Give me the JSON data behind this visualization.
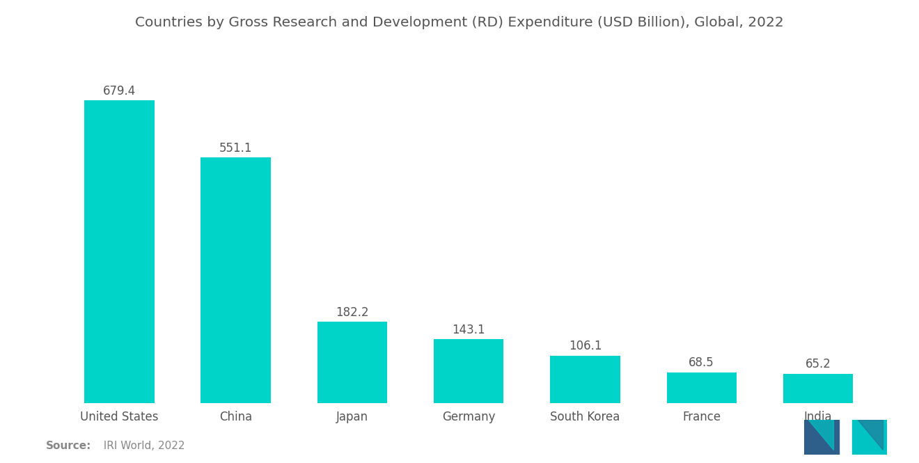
{
  "title": "Countries by Gross Research and Development (RD) Expenditure (USD Billion), Global, 2022",
  "categories": [
    "United States",
    "China",
    "Japan",
    "Germany",
    "South Korea",
    "France",
    "India"
  ],
  "values": [
    679.4,
    551.1,
    182.2,
    143.1,
    106.1,
    68.5,
    65.2
  ],
  "bar_color": "#00D4C8",
  "background_color": "#ffffff",
  "title_fontsize": 14.5,
  "label_fontsize": 12,
  "value_fontsize": 12,
  "source_bold": "Source:",
  "source_normal": "  IRI World, 2022",
  "ylim": [
    0,
    780
  ],
  "logo_left_color": "#2E5F8A",
  "logo_right_color": "#00C4C4"
}
